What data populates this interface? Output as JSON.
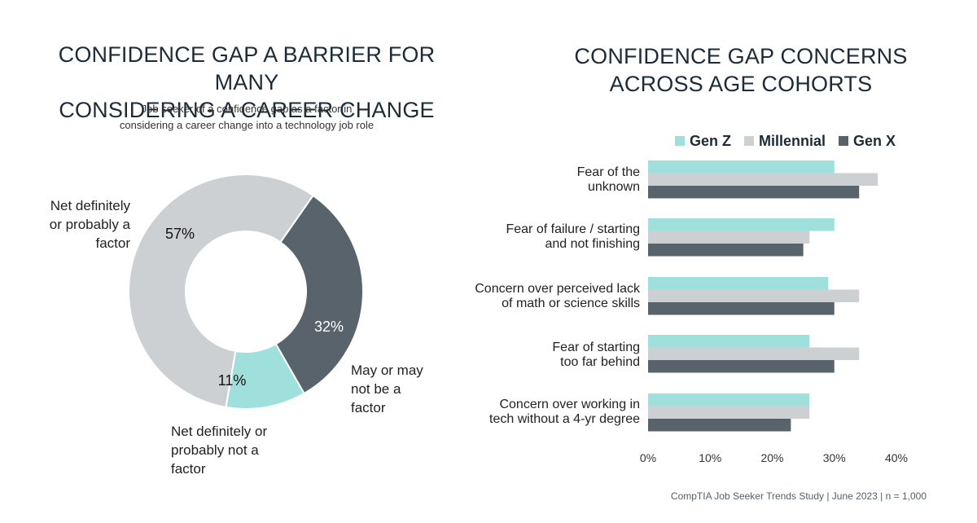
{
  "left_chart": {
    "title_lines": [
      "CONFIDENCE GAP A BARRIER FOR MANY",
      "CONSIDERING A CAREER CHANGE"
    ],
    "subtitle_lines": [
      "Job seeker of a confidence gap as a factor in",
      "considering a career change into a technology job role"
    ],
    "slice_labels": {
      "factor": [
        "Net definitely",
        "or probably a",
        "factor"
      ],
      "maybe": [
        "May or may",
        "not be a",
        "factor"
      ],
      "not_factor": [
        "Net definitely or",
        "probably not a",
        "factor"
      ]
    },
    "percent_labels": {
      "factor": "57%",
      "maybe": "32%",
      "not_factor": "11%"
    }
  },
  "right_chart": {
    "title_lines": [
      "CONFIDENCE GAP CONCERNS",
      "ACROSS AGE COHORTS"
    ],
    "legend": [
      "Gen Z",
      "Millennial",
      "Gen X"
    ],
    "category_lines": [
      [
        "Fear of the",
        "unknown"
      ],
      [
        "Fear of failure / starting",
        "and not finishing"
      ],
      [
        "Concern over perceived lack",
        "of math or science skills"
      ],
      [
        "Fear of starting",
        "too far behind"
      ],
      [
        "Concern over working in",
        "tech without a 4-yr degree"
      ]
    ],
    "tick_labels": [
      "0%",
      "10%",
      "20%",
      "30%",
      "40%"
    ]
  },
  "colors": {
    "gen_z": "#a0e0dc",
    "millennial": "#cdd0d3",
    "gen_x": "#58636b",
    "donut_factor": "#cdd0d3",
    "donut_maybe": "#58636b",
    "donut_not_factor": "#a0e0dc"
  },
  "source": "CompTIA Job Seeker Trends Study | June 2023 | n = 1,000",
  "chart_data": [
    {
      "type": "pie",
      "title": "CONFIDENCE GAP A BARRIER FOR MANY CONSIDERING A CAREER CHANGE",
      "subtitle": "Job seeker of a confidence gap as a factor in considering a career change into a technology job role",
      "categories": [
        "Net definitely or probably a factor",
        "May or may not be a factor",
        "Net definitely or probably not a factor"
      ],
      "values": [
        57,
        32,
        11
      ],
      "donut": true
    },
    {
      "type": "bar",
      "orientation": "horizontal",
      "title": "CONFIDENCE GAP CONCERNS ACROSS AGE COHORTS",
      "categories": [
        "Fear of the unknown",
        "Fear of failure / starting and not finishing",
        "Concern over perceived lack of math or science skills",
        "Fear of starting too far behind",
        "Concern over working in tech without a 4-yr degree"
      ],
      "series": [
        {
          "name": "Gen Z",
          "values": [
            30,
            30,
            29,
            26,
            26
          ]
        },
        {
          "name": "Millennial",
          "values": [
            37,
            26,
            34,
            34,
            26
          ]
        },
        {
          "name": "Gen X",
          "values": [
            34,
            25,
            30,
            30,
            23
          ]
        }
      ],
      "xlim": [
        0,
        40
      ],
      "xticks": [
        0,
        10,
        20,
        30,
        40
      ],
      "grid": false,
      "legend_position": "top-right"
    }
  ]
}
